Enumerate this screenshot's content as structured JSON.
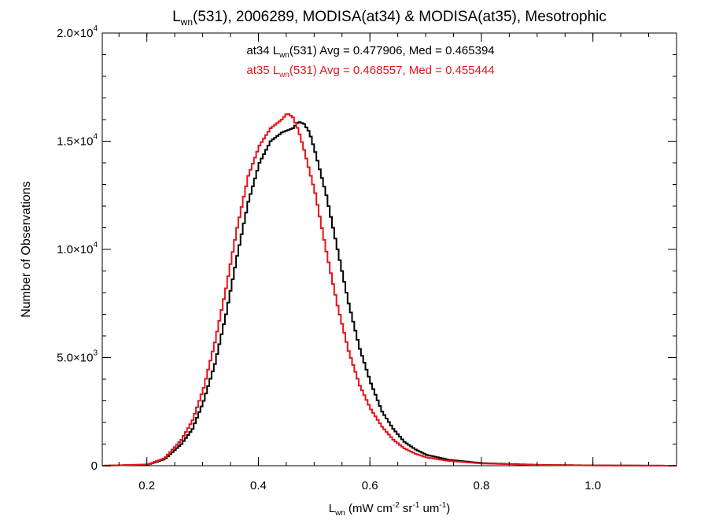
{
  "chart_data": {
    "type": "line",
    "step": true,
    "title": {
      "main": "L",
      "sub": "wn",
      "rest": "(531), 2006289, MODISA(at34) & MODISA(at35), Mesotrophic"
    },
    "xlabel": {
      "main": "L",
      "sub": "wn",
      "rest": " (mW cm",
      "sup1": "-2",
      "mid1": " sr",
      "sup2": "-1",
      "mid2": " um",
      "sup3": "-1",
      "end": ")"
    },
    "ylabel": "Number of Observations",
    "xlim": [
      0.12,
      1.15
    ],
    "ylim": [
      0,
      20000
    ],
    "x_ticks": [
      {
        "v": 0.2,
        "label": "0.2"
      },
      {
        "v": 0.4,
        "label": "0.4"
      },
      {
        "v": 0.6,
        "label": "0.6"
      },
      {
        "v": 0.8,
        "label": "0.8"
      },
      {
        "v": 1.0,
        "label": "1.0"
      }
    ],
    "x_minor_step": 0.05,
    "y_ticks": [
      {
        "v": 0,
        "base": "0",
        "exp": ""
      },
      {
        "v": 5000,
        "base": "5.0×10",
        "exp": "3"
      },
      {
        "v": 10000,
        "base": "1.0×10",
        "exp": "4"
      },
      {
        "v": 15000,
        "base": "1.5×10",
        "exp": "4"
      },
      {
        "v": 20000,
        "base": "2.0×10",
        "exp": "4"
      }
    ],
    "y_minor_step": 1000,
    "annotations": [
      {
        "prefix": "at34 L",
        "sub": "wn",
        "rest": "(531) Avg = 0.477906, Med = 0.465394",
        "color": "#000000"
      },
      {
        "prefix": "at35 L",
        "sub": "wn",
        "rest": "(531) Avg = 0.468557, Med = 0.455444",
        "color": "#e8131b"
      }
    ],
    "series": [
      {
        "color": "#000000",
        "x": [
          0.12,
          0.2,
          0.23,
          0.26,
          0.28,
          0.3,
          0.32,
          0.34,
          0.36,
          0.38,
          0.4,
          0.42,
          0.44,
          0.46,
          0.47,
          0.48,
          0.49,
          0.5,
          0.52,
          0.54,
          0.56,
          0.58,
          0.6,
          0.62,
          0.64,
          0.66,
          0.68,
          0.7,
          0.74,
          0.8,
          0.9,
          1.0,
          1.15
        ],
        "y": [
          0,
          50,
          300,
          1000,
          1700,
          3000,
          4700,
          7000,
          9700,
          12200,
          14000,
          15000,
          15400,
          15600,
          15900,
          15800,
          15400,
          14500,
          12500,
          10000,
          7500,
          5400,
          3800,
          2500,
          1700,
          1100,
          750,
          500,
          270,
          120,
          40,
          15,
          0
        ]
      },
      {
        "color": "#e8131b",
        "x": [
          0.12,
          0.2,
          0.23,
          0.26,
          0.28,
          0.3,
          0.32,
          0.34,
          0.36,
          0.38,
          0.4,
          0.42,
          0.44,
          0.45,
          0.46,
          0.47,
          0.48,
          0.5,
          0.52,
          0.54,
          0.56,
          0.58,
          0.6,
          0.62,
          0.64,
          0.66,
          0.68,
          0.7,
          0.74,
          0.8,
          0.9,
          1.0,
          1.15
        ],
        "y": [
          0,
          60,
          350,
          1200,
          2100,
          3600,
          5700,
          8200,
          11000,
          13400,
          14800,
          15600,
          16000,
          16300,
          16100,
          15500,
          14600,
          12600,
          9900,
          7400,
          5300,
          3700,
          2600,
          1800,
          1200,
          800,
          550,
          380,
          220,
          100,
          35,
          12,
          0
        ]
      }
    ]
  }
}
